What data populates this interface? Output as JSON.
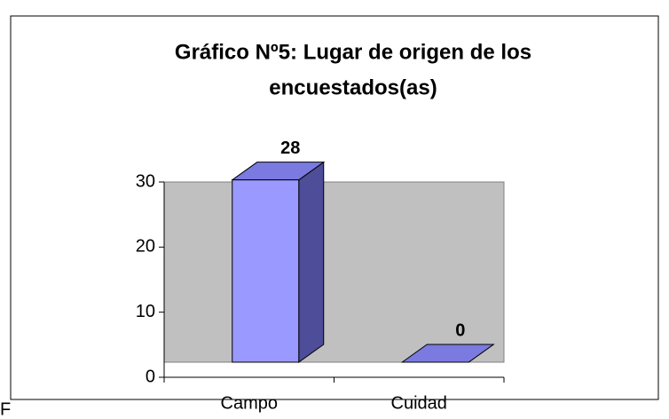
{
  "chart_data": {
    "type": "bar3d",
    "title": [
      "Gráfico Nº5: Lugar de origen de los",
      "encuestados(as)"
    ],
    "categories": [
      "Campo",
      "Cuidad"
    ],
    "values": [
      28,
      0
    ],
    "color": "#9999ff",
    "ylim": [
      0,
      30
    ],
    "yticks": [
      0,
      10,
      20,
      30
    ]
  },
  "caption": "F"
}
